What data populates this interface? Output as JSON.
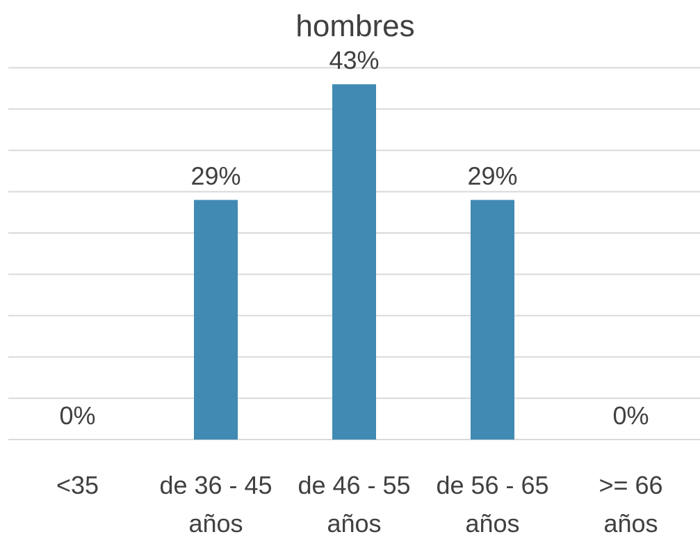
{
  "chart_data": {
    "type": "bar",
    "title": "hombres",
    "xlabel": "",
    "ylabel": "",
    "categories": [
      [
        "<35"
      ],
      [
        "de 36 - 45",
        "años"
      ],
      [
        "de 46 - 55",
        "años"
      ],
      [
        "de 56 - 65",
        "años"
      ],
      [
        ">= 66",
        "años"
      ]
    ],
    "values": [
      0,
      29,
      43,
      29,
      0
    ],
    "data_labels": [
      "0%",
      "29%",
      "43%",
      "29%",
      "0%"
    ],
    "ylim": [
      0,
      45
    ],
    "grid_step": 5,
    "grid": true,
    "legend": "none",
    "bar_color": "#418AB3",
    "grid_color": "#D9D9D9",
    "text_color": "#404040"
  }
}
